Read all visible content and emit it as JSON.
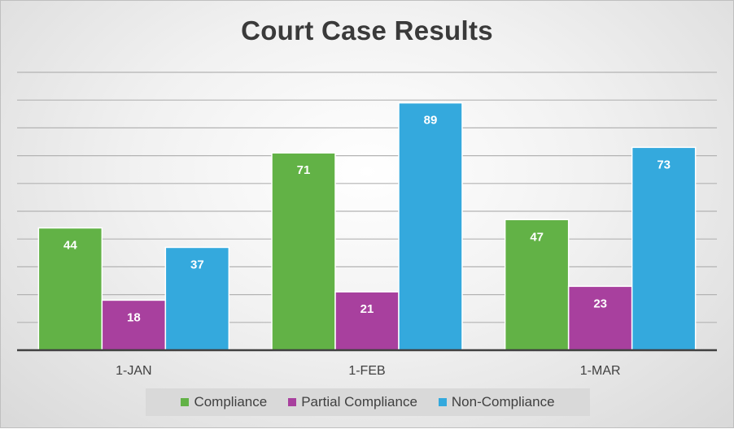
{
  "chart_data": {
    "type": "bar",
    "title": "Court Case Results",
    "categories": [
      "1-JAN",
      "1-FEB",
      "1-MAR"
    ],
    "series": [
      {
        "name": "Compliance",
        "values": [
          44,
          71,
          47
        ],
        "color": "#62b246"
      },
      {
        "name": "Partial Compliance",
        "values": [
          18,
          21,
          23
        ],
        "color": "#a8409e"
      },
      {
        "name": "Non-Compliance",
        "values": [
          37,
          89,
          73
        ],
        "color": "#34a9dd"
      }
    ],
    "ylim": [
      0,
      100
    ],
    "grid": true,
    "legend_position": "bottom",
    "xlabel": "",
    "ylabel": ""
  }
}
